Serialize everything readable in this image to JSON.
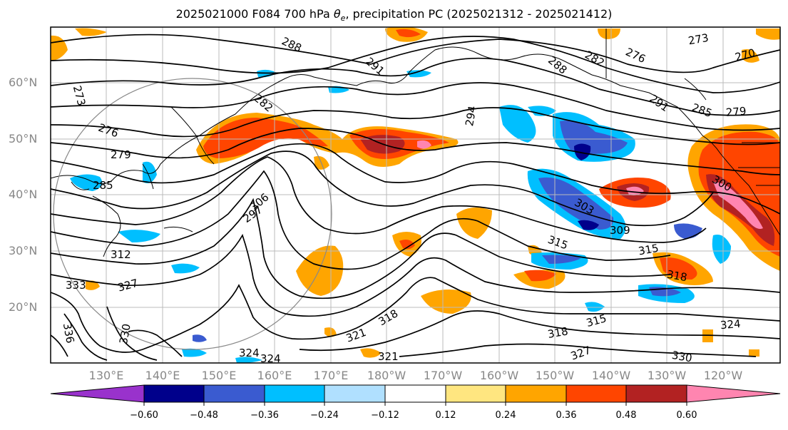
{
  "title": {
    "prefix": "2025021000 F084 700 hPa ",
    "symbol": "θ",
    "subscript": "e",
    "suffix": ", precipitation PC (2025021312 - 2025021412)"
  },
  "lat_labels": [
    "60°N",
    "50°N",
    "40°N",
    "30°N",
    "20°N"
  ],
  "lon_labels": [
    "130°E",
    "140°E",
    "150°E",
    "160°E",
    "170°E",
    "180°W",
    "170°W",
    "160°W",
    "150°W",
    "140°W",
    "130°W",
    "120°W"
  ],
  "contour_labels": [
    "288",
    "291",
    "288",
    "282",
    "276",
    "273",
    "270",
    "273",
    "282",
    "294",
    "291",
    "285",
    "279",
    "276",
    "279",
    "285",
    "297",
    "306",
    "300",
    "303",
    "309",
    "315",
    "315",
    "312",
    "327",
    "333",
    "336",
    "330",
    "324",
    "321",
    "318",
    "324",
    "327",
    "330",
    "324",
    "321",
    "318",
    "315",
    "318"
  ],
  "colorbar": {
    "ticks": [
      "−0.60",
      "−0.48",
      "−0.36",
      "−0.24",
      "−0.12",
      "0.12",
      "0.24",
      "0.36",
      "0.48",
      "0.60"
    ],
    "colors": [
      "#9932cc",
      "#00008b",
      "#3a5bd0",
      "#00bfff",
      "#b0e0ff",
      "#ffffff",
      "#ffe680",
      "#ffa500",
      "#ff4500",
      "#b22222",
      "#ff85b0",
      "#ff85b0"
    ]
  }
}
